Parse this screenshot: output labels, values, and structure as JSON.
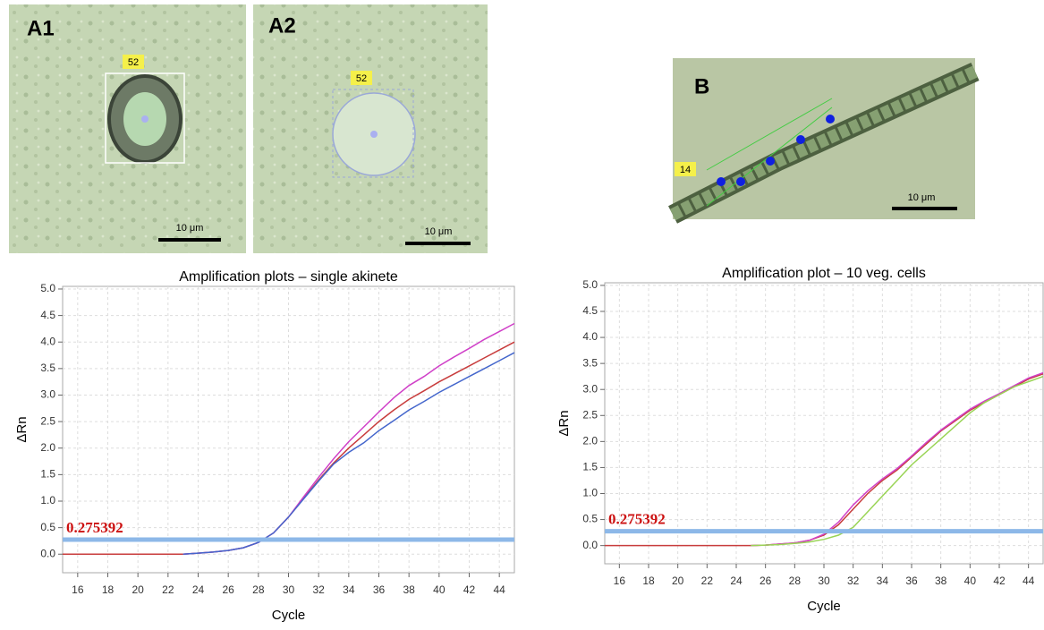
{
  "panels": [
    {
      "label": "A1",
      "roi": "52",
      "scale": "10 μm"
    },
    {
      "label": "A2",
      "roi": "52",
      "scale": "10 μm"
    },
    {
      "label": "B",
      "roi": "14",
      "scale": "10 μm"
    }
  ],
  "chart_data": [
    {
      "type": "line",
      "title": "Amplification plots – single akinete",
      "x_label": "Cycle",
      "y_label": "ΔRn",
      "threshold": 0.275392,
      "threshold_color": "#8db8e8",
      "grid": true,
      "xlim": [
        15,
        45
      ],
      "ylim": [
        -0.35,
        5.05
      ],
      "xticks": [
        16,
        18,
        20,
        22,
        24,
        26,
        28,
        30,
        32,
        34,
        36,
        38,
        40,
        42,
        44
      ],
      "yticks": [
        {
          "value": 0,
          "label": "0.0"
        },
        0.5,
        {
          "value": 1,
          "label": "1.0"
        },
        1.5,
        {
          "value": 2,
          "label": "2.0"
        },
        2.5,
        {
          "value": 3,
          "label": "3.0"
        },
        3.5,
        {
          "value": 4,
          "label": "4.0"
        },
        4.5,
        {
          "value": 5,
          "label": "5.0"
        }
      ],
      "x": [
        15,
        16,
        17,
        18,
        19,
        20,
        21,
        22,
        23,
        24,
        25,
        26,
        27,
        28,
        29,
        30,
        31,
        32,
        33,
        34,
        35,
        36,
        37,
        38,
        39,
        40,
        41,
        42,
        43,
        44,
        45
      ],
      "series": [
        {
          "color": "#c83c3c",
          "values": [
            0,
            0,
            0,
            0,
            0,
            0,
            0,
            0,
            0,
            0.02,
            0.04,
            0.07,
            0.12,
            0.22,
            0.4,
            0.7,
            1.05,
            1.4,
            1.72,
            2.0,
            2.25,
            2.5,
            2.72,
            2.92,
            3.08,
            3.25,
            3.4,
            3.55,
            3.7,
            3.85,
            4.0
          ]
        },
        {
          "color": "#d040c8",
          "values": [
            null,
            null,
            null,
            null,
            null,
            null,
            null,
            null,
            0,
            0.02,
            0.04,
            0.07,
            0.12,
            0.22,
            0.4,
            0.7,
            1.08,
            1.45,
            1.8,
            2.12,
            2.4,
            2.68,
            2.95,
            3.18,
            3.35,
            3.55,
            3.72,
            3.88,
            4.05,
            4.2,
            4.35
          ]
        },
        {
          "color": "#4466cc",
          "values": [
            null,
            null,
            null,
            null,
            null,
            null,
            null,
            null,
            0,
            0.02,
            0.04,
            0.07,
            0.12,
            0.22,
            0.4,
            0.7,
            1.04,
            1.38,
            1.7,
            1.92,
            2.1,
            2.33,
            2.52,
            2.72,
            2.88,
            3.05,
            3.2,
            3.35,
            3.5,
            3.65,
            3.8
          ]
        }
      ]
    },
    {
      "type": "line",
      "title": "Amplification plot – 10 veg. cells",
      "x_label": "Cycle",
      "y_label": "ΔRn",
      "threshold": 0.275392,
      "threshold_color": "#8db8e8",
      "grid": true,
      "xlim": [
        15,
        45
      ],
      "ylim": [
        -0.35,
        5.05
      ],
      "xticks": [
        16,
        18,
        20,
        22,
        24,
        26,
        28,
        30,
        32,
        34,
        36,
        38,
        40,
        42,
        44
      ],
      "yticks": [
        {
          "value": 0,
          "label": "0.0"
        },
        0.5,
        {
          "value": 1,
          "label": "1.0"
        },
        1.5,
        {
          "value": 2,
          "label": "2.0"
        },
        2.5,
        {
          "value": 3,
          "label": "3.0"
        },
        3.5,
        {
          "value": 4,
          "label": "4.0"
        },
        4.5,
        {
          "value": 5,
          "label": "5.0"
        }
      ],
      "x": [
        15,
        16,
        17,
        18,
        19,
        20,
        21,
        22,
        23,
        24,
        25,
        26,
        27,
        28,
        29,
        30,
        31,
        32,
        33,
        34,
        35,
        36,
        37,
        38,
        39,
        40,
        41,
        42,
        43,
        44,
        45
      ],
      "series": [
        {
          "color": "#c83c3c",
          "values": [
            0,
            0,
            0,
            0,
            0,
            0,
            0,
            0,
            0,
            0,
            0,
            0.01,
            0.03,
            0.05,
            0.1,
            0.2,
            0.4,
            0.7,
            1.0,
            1.25,
            1.45,
            1.7,
            1.95,
            2.2,
            2.4,
            2.6,
            2.75,
            2.9,
            3.05,
            3.2,
            3.3
          ]
        },
        {
          "color": "#d040c8",
          "values": [
            null,
            null,
            null,
            null,
            null,
            null,
            null,
            null,
            null,
            null,
            0,
            0.01,
            0.03,
            0.05,
            0.1,
            0.22,
            0.45,
            0.78,
            1.05,
            1.28,
            1.48,
            1.72,
            1.98,
            2.22,
            2.42,
            2.62,
            2.78,
            2.92,
            3.07,
            3.22,
            3.32
          ]
        },
        {
          "color": "#99d455",
          "values": [
            null,
            null,
            null,
            null,
            null,
            null,
            null,
            null,
            null,
            null,
            0,
            0.01,
            0.02,
            0.04,
            0.07,
            0.12,
            0.2,
            0.35,
            0.65,
            0.95,
            1.25,
            1.55,
            1.8,
            2.05,
            2.3,
            2.55,
            2.75,
            2.9,
            3.05,
            3.15,
            3.25
          ]
        }
      ]
    }
  ]
}
